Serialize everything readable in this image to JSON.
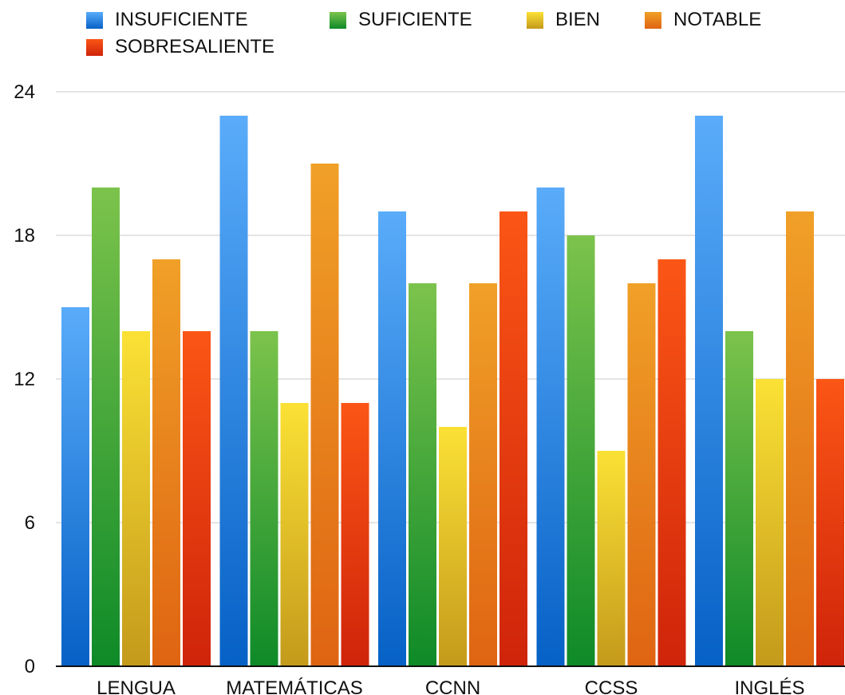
{
  "chart_data": {
    "type": "bar",
    "title": "",
    "xlabel": "",
    "ylabel": "",
    "categories": [
      "LENGUA",
      "MATEMÁTICAS",
      "CCNN",
      "CCSS",
      "INGLÉS"
    ],
    "ylim": [
      0,
      24
    ],
    "yticks": [
      "0",
      "6",
      "12",
      "18",
      "24"
    ],
    "grid": true,
    "legend": "top",
    "series": [
      {
        "name": "INSUFICIENTE",
        "values": [
          15,
          23,
          19,
          20,
          23
        ],
        "color_top": "#5aacfa",
        "color_bottom": "#0661c6"
      },
      {
        "name": "SUFICIENTE",
        "values": [
          20,
          14,
          16,
          18,
          14
        ],
        "color_top": "#7cc34c",
        "color_bottom": "#0e8a28"
      },
      {
        "name": "BIEN",
        "values": [
          14,
          11,
          10,
          9,
          12
        ],
        "color_top": "#fbe135",
        "color_bottom": "#c49a1b"
      },
      {
        "name": "NOTABLE",
        "values": [
          17,
          21,
          16,
          16,
          19
        ],
        "color_top": "#f0a028",
        "color_bottom": "#df6412"
      },
      {
        "name": "SOBRESALIENTE",
        "values": [
          14,
          11,
          19,
          17,
          12
        ],
        "color_top": "#fb5616",
        "color_bottom": "#cf240a"
      }
    ]
  }
}
